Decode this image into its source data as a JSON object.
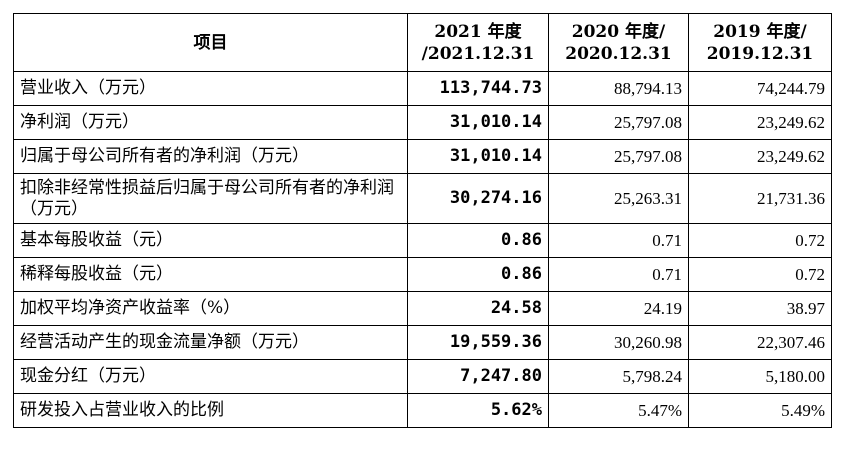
{
  "table": {
    "header": {
      "item": "项目",
      "y2021": [
        "2021 年度",
        "/2021.12.31"
      ],
      "y2020": [
        "2020 年度/",
        "2020.12.31"
      ],
      "y2019": [
        "2019 年度/",
        "2019.12.31"
      ]
    },
    "rows": [
      {
        "label": "营业收入（万元）",
        "v2021": "113,744.73",
        "v2020": "88,794.13",
        "v2019": "74,244.79"
      },
      {
        "label": "净利润（万元）",
        "v2021": "31,010.14",
        "v2020": "25,797.08",
        "v2019": "23,249.62"
      },
      {
        "label": "归属于母公司所有者的净利润（万元）",
        "v2021": "31,010.14",
        "v2020": "25,797.08",
        "v2019": "23,249.62"
      },
      {
        "label": "扣除非经常性损益后归属于母公司所有者的净利润（万元）",
        "v2021": "30,274.16",
        "v2020": "25,263.31",
        "v2019": "21,731.36"
      },
      {
        "label": "基本每股收益（元）",
        "v2021": "0.86",
        "v2020": "0.71",
        "v2019": "0.72"
      },
      {
        "label": "稀释每股收益（元）",
        "v2021": "0.86",
        "v2020": "0.71",
        "v2019": "0.72"
      },
      {
        "label": "加权平均净资产收益率（%）",
        "v2021": "24.58",
        "v2020": "24.19",
        "v2019": "38.97"
      },
      {
        "label": "经营活动产生的现金流量净额（万元）",
        "v2021": "19,559.36",
        "v2020": "30,260.98",
        "v2019": "22,307.46"
      },
      {
        "label": "现金分红（万元）",
        "v2021": "7,247.80",
        "v2020": "5,798.24",
        "v2019": "5,180.00"
      },
      {
        "label": "研发投入占营业收入的比例",
        "v2021": "5.62%",
        "v2020": "5.47%",
        "v2019": "5.49%"
      }
    ]
  }
}
